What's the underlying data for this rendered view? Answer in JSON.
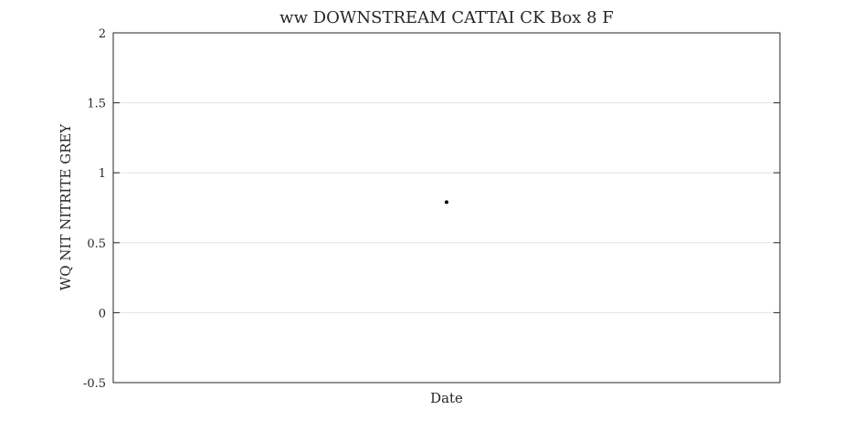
{
  "chart_data": {
    "type": "scatter",
    "title": "ww DOWNSTREAM CATTAI CK Box 8 F",
    "xlabel": "Date",
    "ylabel": "WQ NIT NITRITE GREY",
    "ylim": [
      -0.5,
      2
    ],
    "yticks": [
      -0.5,
      0,
      0.5,
      1,
      1.5,
      2
    ],
    "ytick_labels": [
      "-0.5",
      "0",
      "0.5",
      "1",
      "1.5",
      "2"
    ],
    "x_position_fraction": [
      0.5
    ],
    "values": [
      0.79
    ],
    "grid": "horizontal",
    "marker_color": "#000000"
  }
}
